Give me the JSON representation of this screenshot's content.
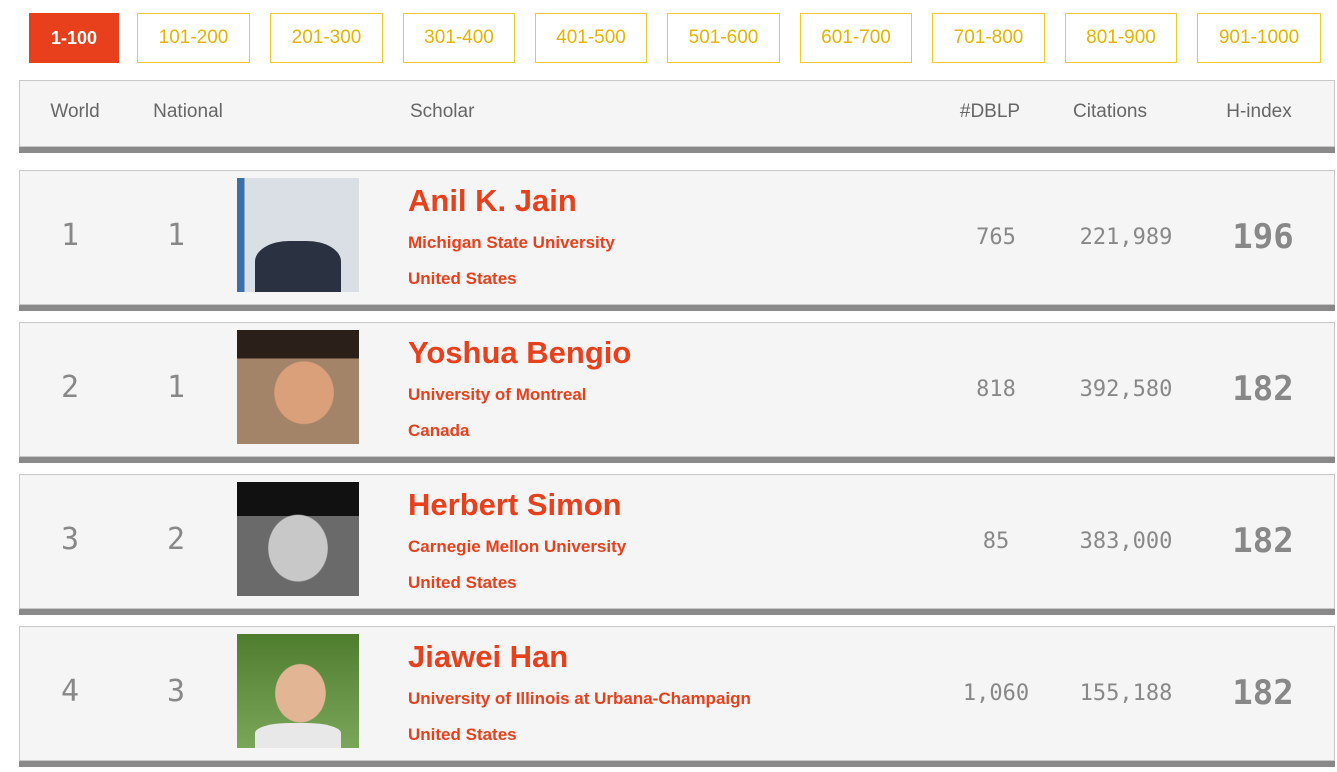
{
  "pagination": [
    "1-100",
    "101-200",
    "201-300",
    "301-400",
    "401-500",
    "501-600",
    "601-700",
    "701-800",
    "801-900",
    "901-1000"
  ],
  "header": [
    "World",
    "National",
    "Scholar",
    "#DBLP",
    "Citations",
    "H-index"
  ],
  "rows": [
    {
      "world": "1",
      "national": "1",
      "name": "Anil K. Jain",
      "institution": "Michigan State University",
      "country": "United States",
      "dblp": "765",
      "citations": "221,989",
      "hindex": "196"
    },
    {
      "world": "2",
      "national": "1",
      "name": "Yoshua Bengio",
      "institution": "University of Montreal",
      "country": "Canada",
      "dblp": "818",
      "citations": "392,580",
      "hindex": "182"
    },
    {
      "world": "3",
      "national": "2",
      "name": "Herbert Simon",
      "institution": "Carnegie Mellon University",
      "country": "United States",
      "dblp": "85",
      "citations": "383,000",
      "hindex": "182"
    },
    {
      "world": "4",
      "national": "3",
      "name": "Jiawei Han",
      "institution": "University of Illinois at Urbana-Champaign",
      "country": "United States",
      "dblp": "1,060",
      "citations": "155,188",
      "hindex": "182"
    }
  ]
}
